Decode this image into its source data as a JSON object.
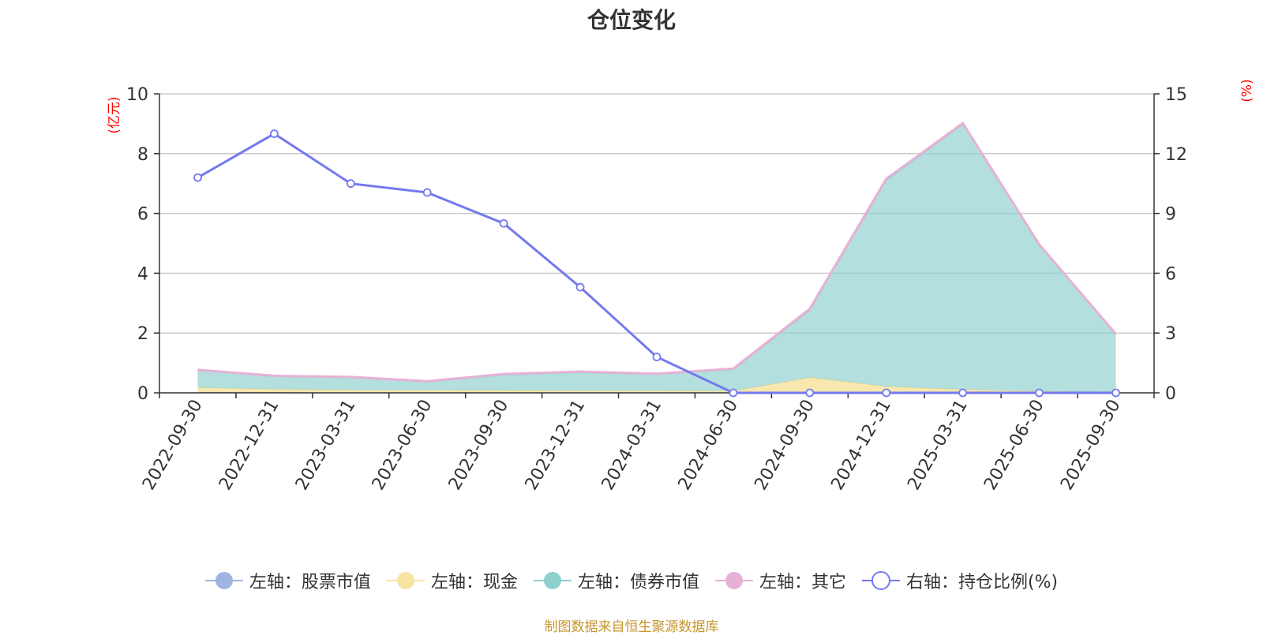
{
  "colors": {
    "stock": "#9db5e0",
    "cash": "#f7e3a0",
    "bond": "#8fd0cf",
    "other": "#e7b1d6",
    "ratio": "#7479ef",
    "axis_unit": "#ff0000",
    "source": "#c8962c"
  },
  "chart_data": {
    "type": "area",
    "title": "仓位变化",
    "left_axis_unit": "(亿元)",
    "right_axis_unit": "(%)",
    "left_ylim": [
      0,
      10
    ],
    "left_ticks": [
      "0",
      "2",
      "4",
      "6",
      "8",
      "10"
    ],
    "right_ylim": [
      0,
      15
    ],
    "right_ticks": [
      "0",
      "3",
      "6",
      "9",
      "12",
      "15"
    ],
    "categories": [
      "2022-09-30",
      "2022-12-31",
      "2023-03-31",
      "2023-06-30",
      "2023-09-30",
      "2023-12-31",
      "2024-03-31",
      "2024-06-30",
      "2024-09-30",
      "2024-12-31",
      "2025-03-31",
      "2025-06-30",
      "2025-09-30"
    ],
    "grid": true,
    "legend_position": "bottom",
    "series": [
      {
        "name": "左轴：股票市值",
        "axis": "left",
        "kind": "stacked-area",
        "color_key": "stock",
        "values": [
          0.02,
          0.02,
          0.01,
          0.01,
          0.01,
          0.01,
          0.01,
          0.01,
          0.01,
          0.01,
          0.01,
          0.0,
          0.0
        ]
      },
      {
        "name": "左轴：现金",
        "axis": "left",
        "kind": "stacked-area",
        "color_key": "cash",
        "values": [
          0.15,
          0.1,
          0.08,
          0.08,
          0.07,
          0.06,
          0.06,
          0.05,
          0.5,
          0.2,
          0.1,
          0.05,
          0.03
        ]
      },
      {
        "name": "左轴：债券市值",
        "axis": "left",
        "kind": "stacked-area",
        "color_key": "bond",
        "values": [
          0.58,
          0.43,
          0.42,
          0.28,
          0.52,
          0.61,
          0.55,
          0.72,
          2.25,
          6.9,
          8.87,
          4.87,
          1.92
        ]
      },
      {
        "name": "左轴：其它",
        "axis": "left",
        "kind": "stacked-area",
        "color_key": "other",
        "values": [
          0.02,
          0.02,
          0.02,
          0.02,
          0.03,
          0.03,
          0.02,
          0.03,
          0.05,
          0.05,
          0.04,
          0.04,
          0.02
        ]
      },
      {
        "name": "右轴：持仓比例(%)",
        "axis": "right",
        "kind": "line",
        "color_key": "ratio",
        "values": [
          10.8,
          13.0,
          10.5,
          10.05,
          8.5,
          5.3,
          1.8,
          0,
          0,
          0,
          0,
          0,
          0
        ]
      }
    ]
  },
  "source_note": "制图数据来自恒生聚源数据库"
}
